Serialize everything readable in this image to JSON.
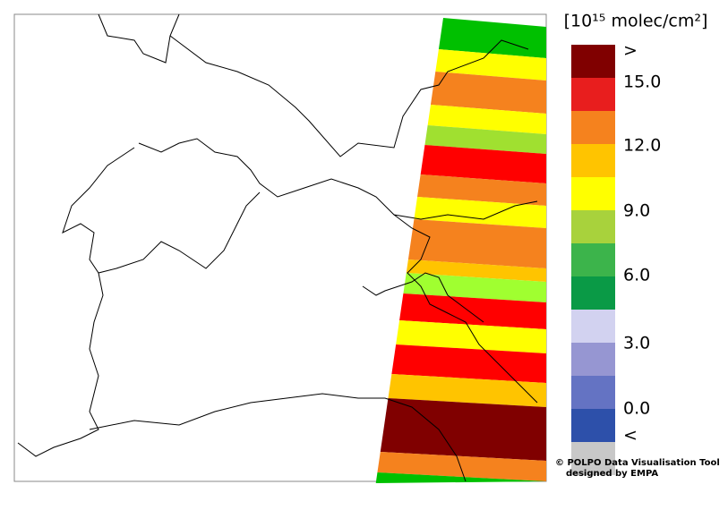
{
  "legend": {
    "title": "[10¹⁵ molec/cm²]",
    "labels": [
      ">",
      "15.0",
      "12.0",
      "9.0",
      "6.0",
      "3.0",
      "0.0",
      "<"
    ],
    "colors": [
      "#800000",
      "#e81e1e",
      "#f5821e",
      "#ffc400",
      "#ffff00",
      "#a8d23c",
      "#3cb44b",
      "#0a9a46",
      "#d2d2f0",
      "#9696d2",
      "#6473c3",
      "#2d50aa",
      "#c8c8c8"
    ]
  },
  "credit": [
    "© POLPO Data Visualisation Tool",
    "designed by EMPA"
  ]
}
